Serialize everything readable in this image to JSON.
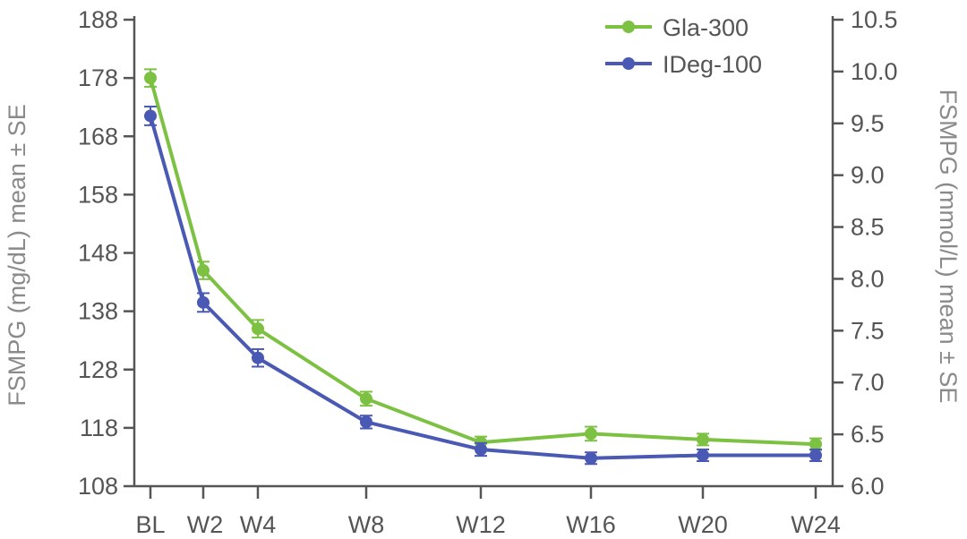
{
  "chart_data": {
    "type": "line",
    "categories": [
      "BL",
      "W2",
      "W4",
      "W8",
      "W12",
      "W16",
      "W20",
      "W24"
    ],
    "x_weeks": [
      0,
      2,
      4,
      8,
      12,
      16,
      20,
      24
    ],
    "ylabel": "FSMPG (mg/dL) mean ± SE",
    "y2label": "FSMPG (mmol/L) mean ± SE",
    "ylim": [
      108,
      188
    ],
    "yticks": [
      108,
      118,
      128,
      138,
      148,
      158,
      168,
      178,
      188
    ],
    "y2lim": [
      6.0,
      10.5
    ],
    "y2ticks": [
      "6.0",
      "6.5",
      "7.0",
      "7.5",
      "8.0",
      "8.5",
      "9.0",
      "9.5",
      "10.0",
      "10.5"
    ],
    "legend_position": "top-right",
    "series": [
      {
        "name": "Gla-300",
        "color": "#7dc143",
        "values": [
          178,
          145,
          135,
          123,
          115.5,
          117,
          116,
          115.2
        ],
        "se": [
          1.5,
          1.5,
          1.5,
          1.2,
          1.0,
          1.2,
          1.0,
          1.0
        ]
      },
      {
        "name": "IDeg-100",
        "color": "#4a59b4",
        "values": [
          171.5,
          139.5,
          130,
          119,
          114.3,
          112.8,
          113.3,
          113.3
        ],
        "se": [
          1.6,
          1.6,
          1.5,
          1.1,
          1.1,
          1.0,
          1.0,
          1.0
        ]
      }
    ]
  }
}
